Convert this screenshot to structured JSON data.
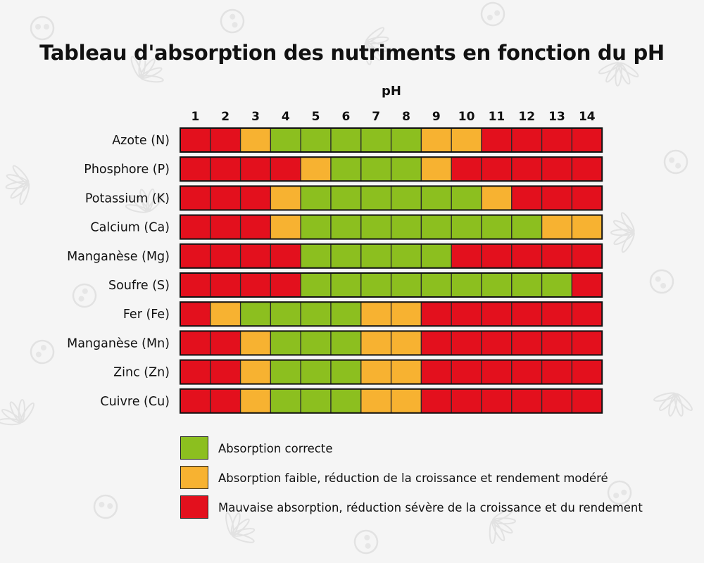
{
  "title": "Tableau d'absorption des nutriments en fonction du pH",
  "colors": {
    "good": "#8cbf1f",
    "moderate": "#f7b231",
    "bad": "#e3101d",
    "border": "#2a2a2a",
    "background": "#f5f5f5"
  },
  "chart_data": {
    "type": "heatmap",
    "title": "Tableau d'absorption des nutriments en fonction du pH",
    "xlabel": "pH",
    "x": [
      "1",
      "2",
      "3",
      "4",
      "5",
      "6",
      "7",
      "8",
      "9",
      "10",
      "11",
      "12",
      "13",
      "14"
    ],
    "rows": [
      {
        "label": "Azote (N)",
        "values": [
          "bad",
          "bad",
          "moderate",
          "good",
          "good",
          "good",
          "good",
          "good",
          "moderate",
          "moderate",
          "bad",
          "bad",
          "bad",
          "bad"
        ]
      },
      {
        "label": "Phosphore (P)",
        "values": [
          "bad",
          "bad",
          "bad",
          "bad",
          "moderate",
          "good",
          "good",
          "good",
          "moderate",
          "bad",
          "bad",
          "bad",
          "bad",
          "bad"
        ]
      },
      {
        "label": "Potassium (K)",
        "values": [
          "bad",
          "bad",
          "bad",
          "moderate",
          "good",
          "good",
          "good",
          "good",
          "good",
          "good",
          "moderate",
          "bad",
          "bad",
          "bad"
        ]
      },
      {
        "label": "Calcium (Ca)",
        "values": [
          "bad",
          "bad",
          "bad",
          "moderate",
          "good",
          "good",
          "good",
          "good",
          "good",
          "good",
          "good",
          "good",
          "moderate",
          "moderate"
        ]
      },
      {
        "label": "Manganèse (Mg)",
        "values": [
          "bad",
          "bad",
          "bad",
          "bad",
          "good",
          "good",
          "good",
          "good",
          "good",
          "bad",
          "bad",
          "bad",
          "bad",
          "bad"
        ]
      },
      {
        "label": "Soufre (S)",
        "values": [
          "bad",
          "bad",
          "bad",
          "bad",
          "good",
          "good",
          "good",
          "good",
          "good",
          "good",
          "good",
          "good",
          "good",
          "bad"
        ]
      },
      {
        "label": "Fer (Fe)",
        "values": [
          "bad",
          "moderate",
          "good",
          "good",
          "good",
          "good",
          "moderate",
          "moderate",
          "bad",
          "bad",
          "bad",
          "bad",
          "bad",
          "bad"
        ]
      },
      {
        "label": "Manganèse (Mn)",
        "values": [
          "bad",
          "bad",
          "moderate",
          "good",
          "good",
          "good",
          "moderate",
          "moderate",
          "bad",
          "bad",
          "bad",
          "bad",
          "bad",
          "bad"
        ]
      },
      {
        "label": "Zinc (Zn)",
        "values": [
          "bad",
          "bad",
          "moderate",
          "good",
          "good",
          "good",
          "moderate",
          "moderate",
          "bad",
          "bad",
          "bad",
          "bad",
          "bad",
          "bad"
        ]
      },
      {
        "label": "Cuivre (Cu)",
        "values": [
          "bad",
          "bad",
          "moderate",
          "good",
          "good",
          "good",
          "moderate",
          "moderate",
          "bad",
          "bad",
          "bad",
          "bad",
          "bad",
          "bad"
        ]
      }
    ],
    "legend": [
      {
        "key": "good",
        "label": "Absorption correcte"
      },
      {
        "key": "moderate",
        "label": "Absorption faible, réduction de la croissance et rendement modéré"
      },
      {
        "key": "bad",
        "label": "Mauvaise absorption, réduction sévère de la croissance et du rendement"
      }
    ]
  }
}
